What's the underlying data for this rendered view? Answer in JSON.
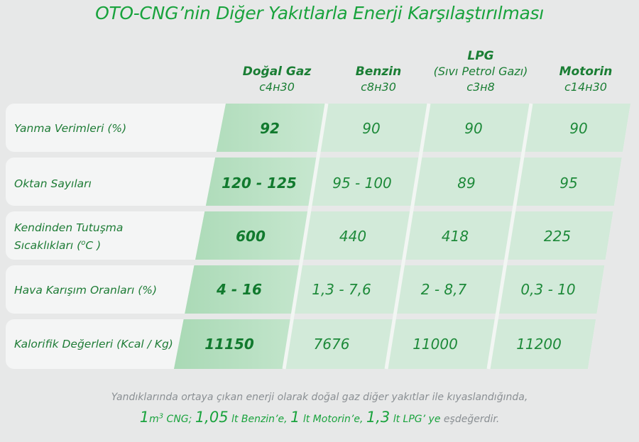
{
  "title": "OTO-CNG’nin Diğer Yakıtlarla Enerji Karşılaştırılması",
  "columns": [
    {
      "name": "Doğal Gaz",
      "sub": "c4н30"
    },
    {
      "name": "Benzin",
      "sub": "c8н30"
    },
    {
      "name": "LPG",
      "sub2": "(Sıvı Petrol Gazı)",
      "sub": "c3н8"
    },
    {
      "name": "Motorin",
      "sub": "c14н30"
    }
  ],
  "rows": [
    {
      "label": "Yanma Verimleri (%)",
      "values": [
        "92",
        "90",
        "90",
        "90"
      ]
    },
    {
      "label": "Oktan Sayıları",
      "values": [
        "120 - 125",
        "95 - 100",
        "89",
        "95"
      ]
    },
    {
      "label_line1": "Kendinden Tutuşma",
      "label_line2": "Sıcaklıkları (",
      "label_unit": "C )",
      "label_sup": "o",
      "values": [
        "600",
        "440",
        "418",
        "225"
      ]
    },
    {
      "label": "Hava Karışım Oranları (%)",
      "values": [
        "4 - 16",
        "1,3 - 7,6",
        "2 - 8,7",
        "0,3 - 10"
      ]
    },
    {
      "label": "Kalorifik Değerleri (Kcal / Kg)",
      "values": [
        "11150",
        "7676",
        "11000",
        "11200"
      ]
    }
  ],
  "footer": {
    "line1": "Yandıklarında ortaya çıkan enerji olarak doğal gaz diğer yakıtlar ile kıyaslandığında,",
    "p1": "1",
    "p2": "m",
    "p3": "3",
    "p4": " CNG; ",
    "p5": "1,05",
    "p6": " lt Benzin’e, ",
    "p7": "1",
    "p8": " lt Motorin’e, ",
    "p9": "1,3",
    "p10": " lt LPG’ ye ",
    "p11": "eşdeğerdir."
  },
  "colors": {
    "background": "#e7e8e8",
    "accent": "#19a33d",
    "band_light": "#d4eadb",
    "band_dark": "#bfe2c8"
  }
}
